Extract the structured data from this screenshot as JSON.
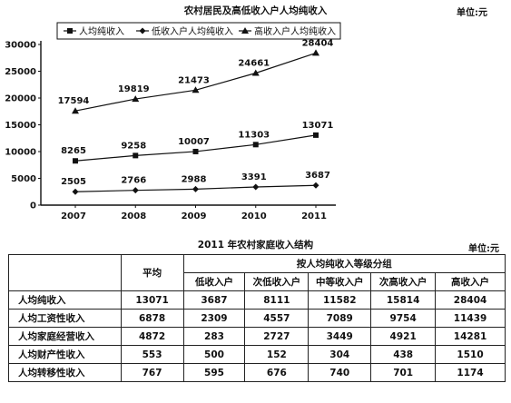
{
  "chart_data": {
    "type": "line",
    "title": "农村居民及高低收入户人均纯收入",
    "unit": "单位:元",
    "x": [
      "2007",
      "2008",
      "2009",
      "2010",
      "2011"
    ],
    "ylim": [
      0,
      30000
    ],
    "yticks": [
      "0",
      "5000",
      "10000",
      "15000",
      "20000",
      "25000",
      "30000"
    ],
    "legend_position": "top",
    "series": [
      {
        "name": "人均纯收入",
        "marker": "square",
        "values": [
          8265,
          9258,
          10007,
          11303,
          13071
        ],
        "labels": [
          "8265",
          "9258",
          "10007",
          "11303",
          "13071"
        ]
      },
      {
        "name": "低收入户人均纯收入",
        "marker": "diamond",
        "values": [
          2505,
          2766,
          2988,
          3391,
          3687
        ],
        "labels": [
          "2505",
          "2766",
          "2988",
          "3391",
          "3687"
        ]
      },
      {
        "name": "高收入户人均纯收入",
        "marker": "triangle",
        "values": [
          17594,
          19819,
          21473,
          24661,
          28404
        ],
        "labels": [
          "17594",
          "19819",
          "21473",
          "24661",
          "28404"
        ]
      }
    ]
  },
  "table": {
    "title": "2011 年农村家庭收入结构",
    "unit": "单位:元",
    "header_avg": "平均",
    "header_group": "按人均纯收入等级分组",
    "subheaders": [
      "低收入户",
      "次低收入户",
      "中等收入户",
      "次高收入户",
      "高收入户"
    ],
    "rows": [
      {
        "label": "人均纯收入",
        "values": [
          "13071",
          "3687",
          "8111",
          "11582",
          "15814",
          "28404"
        ]
      },
      {
        "label": "人均工资性收入",
        "values": [
          "6878",
          "2309",
          "4557",
          "7089",
          "9754",
          "11439"
        ]
      },
      {
        "label": "人均家庭经营收入",
        "values": [
          "4872",
          "283",
          "2727",
          "3449",
          "4921",
          "14281"
        ]
      },
      {
        "label": "人均财产性收入",
        "values": [
          "553",
          "500",
          "152",
          "304",
          "438",
          "1510"
        ]
      },
      {
        "label": "人均转移性收入",
        "values": [
          "767",
          "595",
          "676",
          "740",
          "701",
          "1174"
        ]
      }
    ]
  }
}
